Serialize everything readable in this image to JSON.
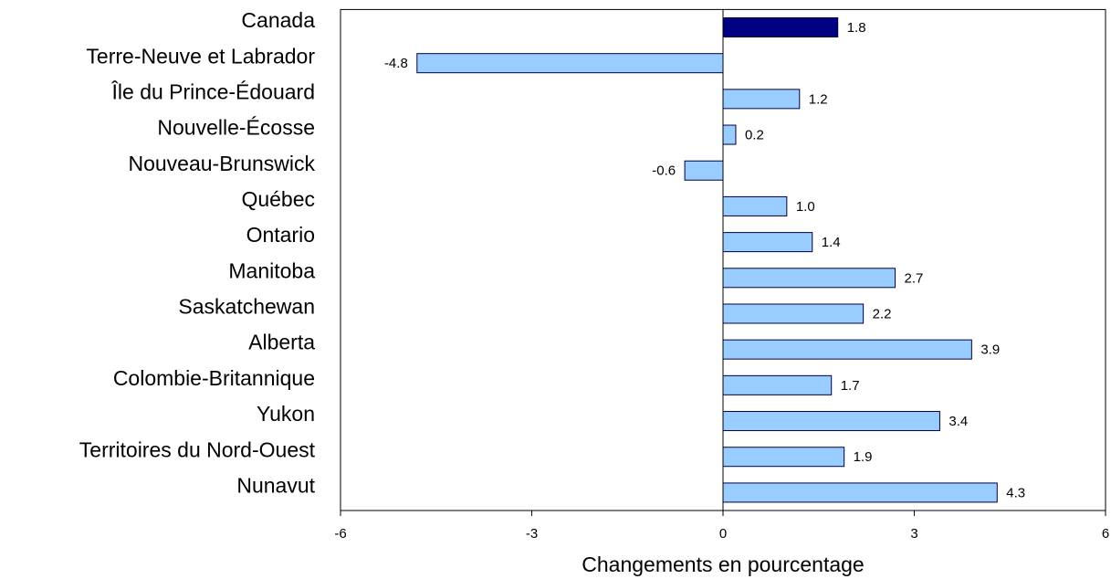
{
  "chart_data": {
    "type": "hbar",
    "categories": [
      "Canada",
      "Terre-Neuve et Labrador",
      "Île du Prince-Édouard",
      "Nouvelle-Écosse",
      "Nouveau-Brunswick",
      "Québec",
      "Ontario",
      "Manitoba",
      "Saskatchewan",
      "Alberta",
      "Colombie-Britannique",
      "Yukon",
      "Territoires du Nord-Ouest",
      "Nunavut"
    ],
    "values": [
      1.8,
      -4.8,
      1.2,
      0.2,
      -0.6,
      1.0,
      1.4,
      2.7,
      2.2,
      3.9,
      1.7,
      3.4,
      1.9,
      4.3
    ],
    "value_labels": [
      "1.8",
      "-4.8",
      "1.2",
      "0.2",
      "-0.6",
      "1.0",
      "1.4",
      "2.7",
      "2.2",
      "3.9",
      "1.7",
      "3.4",
      "1.9",
      "4.3"
    ],
    "colors": [
      "#000080",
      "#99ccff",
      "#99ccff",
      "#99ccff",
      "#99ccff",
      "#99ccff",
      "#99ccff",
      "#99ccff",
      "#99ccff",
      "#99ccff",
      "#99ccff",
      "#99ccff",
      "#99ccff",
      "#99ccff"
    ],
    "xlabel": "Changements en pourcentage",
    "xlim": [
      -6,
      6
    ],
    "xticks": [
      -6,
      -3,
      0,
      3,
      6
    ]
  }
}
